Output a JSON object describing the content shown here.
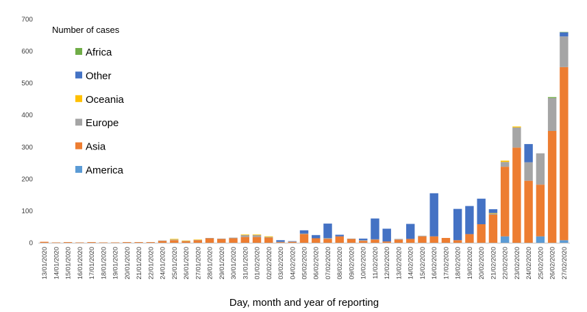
{
  "chart_data": {
    "type": "bar",
    "stacked": true,
    "title": "",
    "xlabel": "Day, month and year of reporting",
    "ylabel": "",
    "legend_title": "Number of cases",
    "legend_position": "top-left",
    "grid": false,
    "ylim": [
      0,
      700
    ],
    "yticks": [
      0,
      100,
      200,
      300,
      400,
      500,
      600,
      700
    ],
    "categories": [
      "13/01/2020",
      "14/01/2020",
      "15/01/2020",
      "16/01/2020",
      "17/01/2020",
      "18/01/2020",
      "19/01/2020",
      "20/01/2020",
      "21/01/2020",
      "22/01/2020",
      "24/01/2020",
      "25/01/2020",
      "26/01/2020",
      "27/01/2020",
      "28/01/2020",
      "29/01/2020",
      "30/01/2020",
      "31/01/2020",
      "01/02/2020",
      "02/02/2020",
      "03/02/2020",
      "04/02/2020",
      "05/02/2020",
      "06/02/2020",
      "07/02/2020",
      "08/02/2020",
      "09/02/2020",
      "10/02/2020",
      "11/02/2020",
      "12/02/2020",
      "13/02/2020",
      "14/02/2020",
      "15/02/2020",
      "16/02/2020",
      "17/02/2020",
      "18/02/2020",
      "19/02/2020",
      "20/02/2020",
      "21/02/2020",
      "22/02/2020",
      "23/02/2020",
      "24/02/2020",
      "25/02/2020",
      "26/02/2020",
      "27/02/2020"
    ],
    "series": [
      {
        "name": "America",
        "color": "#5B9BD5",
        "values": [
          0,
          0,
          0,
          0,
          0,
          0,
          0,
          0,
          0,
          0,
          0,
          0,
          0,
          0,
          0,
          0,
          0,
          0,
          0,
          0,
          0,
          0,
          0,
          0,
          0,
          0,
          0,
          0,
          0,
          0,
          0,
          0,
          0,
          0,
          0,
          0,
          0,
          0,
          0,
          20,
          0,
          0,
          20,
          0,
          8
        ]
      },
      {
        "name": "Asia",
        "color": "#ED7D31",
        "values": [
          3,
          1,
          2,
          1,
          2,
          1,
          1,
          2,
          2,
          2,
          6,
          8,
          5,
          8,
          14,
          12,
          14,
          18,
          18,
          16,
          2,
          3,
          27,
          14,
          12,
          20,
          12,
          6,
          10,
          4,
          10,
          12,
          20,
          20,
          15,
          8,
          27,
          58,
          88,
          218,
          298,
          194,
          162,
          350,
          542
        ]
      },
      {
        "name": "Europe",
        "color": "#A5A5A5",
        "values": [
          0,
          0,
          0,
          0,
          0,
          0,
          0,
          0,
          0,
          0,
          1,
          2,
          1,
          1,
          1,
          1,
          2,
          6,
          6,
          2,
          1,
          1,
          2,
          0,
          3,
          0,
          1,
          2,
          1,
          0,
          2,
          0,
          2,
          0,
          0,
          0,
          0,
          0,
          3,
          15,
          63,
          58,
          98,
          103,
          96
        ]
      },
      {
        "name": "Oceania",
        "color": "#FFC000",
        "values": [
          0,
          0,
          0,
          0,
          0,
          0,
          0,
          0,
          0,
          0,
          0,
          2,
          1,
          1,
          0,
          0,
          0,
          2,
          2,
          2,
          0,
          0,
          0,
          0,
          0,
          0,
          0,
          0,
          0,
          0,
          0,
          0,
          0,
          0,
          0,
          0,
          0,
          0,
          2,
          4,
          3,
          0,
          0,
          0,
          0
        ]
      },
      {
        "name": "Other",
        "color": "#4472C4",
        "values": [
          0,
          0,
          0,
          0,
          0,
          0,
          0,
          0,
          0,
          0,
          0,
          0,
          0,
          0,
          0,
          0,
          0,
          0,
          0,
          0,
          5,
          1,
          10,
          10,
          45,
          5,
          0,
          5,
          65,
          40,
          0,
          47,
          0,
          135,
          0,
          98,
          88,
          80,
          12,
          0,
          0,
          57,
          0,
          0,
          13
        ]
      },
      {
        "name": "Africa",
        "color": "#70AD47",
        "values": [
          0,
          0,
          0,
          0,
          0,
          0,
          0,
          0,
          0,
          0,
          0,
          0,
          0,
          0,
          0,
          0,
          0,
          0,
          0,
          0,
          0,
          0,
          0,
          0,
          0,
          0,
          0,
          0,
          0,
          0,
          0,
          0,
          0,
          0,
          0,
          0,
          0,
          0,
          0,
          0,
          0,
          0,
          0,
          3,
          1
        ]
      }
    ],
    "legend_order": [
      "Africa",
      "Other",
      "Oceania",
      "Europe",
      "Asia",
      "America"
    ]
  }
}
